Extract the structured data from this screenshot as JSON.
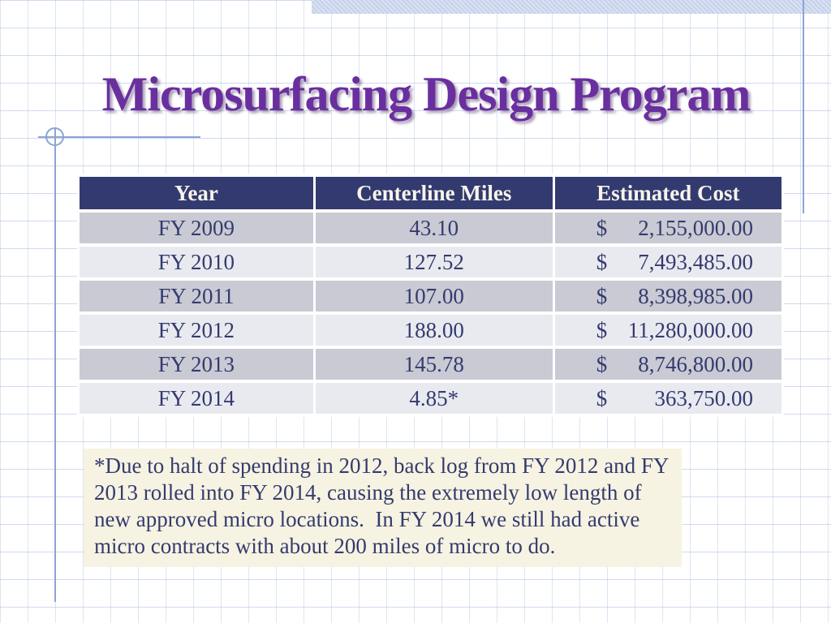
{
  "slide": {
    "title": "Microsurfacing Design Program"
  },
  "table": {
    "columns": [
      "Year",
      "Centerline Miles",
      "Estimated Cost"
    ],
    "rows": [
      {
        "year": "FY 2009",
        "miles": "43.10",
        "currency": "$",
        "amount": "2,155,000.00"
      },
      {
        "year": "FY 2010",
        "miles": "127.52",
        "currency": "$",
        "amount": "7,493,485.00"
      },
      {
        "year": "FY 2011",
        "miles": "107.00",
        "currency": "$",
        "amount": "8,398,985.00"
      },
      {
        "year": "FY 2012",
        "miles": "188.00",
        "currency": "$",
        "amount": "11,280,000.00"
      },
      {
        "year": "FY 2013",
        "miles": "145.78",
        "currency": "$",
        "amount": "8,746,800.00"
      },
      {
        "year": "FY 2014",
        "miles": "4.85*",
        "currency": "$",
        "amount": "363,750.00"
      }
    ]
  },
  "footnote": {
    "text": "*Due to halt of spending in 2012, back log from FY 2012 and FY 2013 rolled into FY 2014, causing the extremely low length of new approved micro locations.  In FY 2014 we still had active micro contracts with about 200 miles of micro to do."
  },
  "colors": {
    "title_purple": "#6a2f9f",
    "table_header_bg": "#333a70",
    "table_header_text": "#f7f4ea",
    "table_text": "#343b6f",
    "row_shaded": "#c9cad3",
    "row_light": "#e9eaf0",
    "footnote_bg": "#f7f3e2",
    "decoration_blue": "#8ca3d6",
    "decoration_band": "#c6d1eb"
  }
}
